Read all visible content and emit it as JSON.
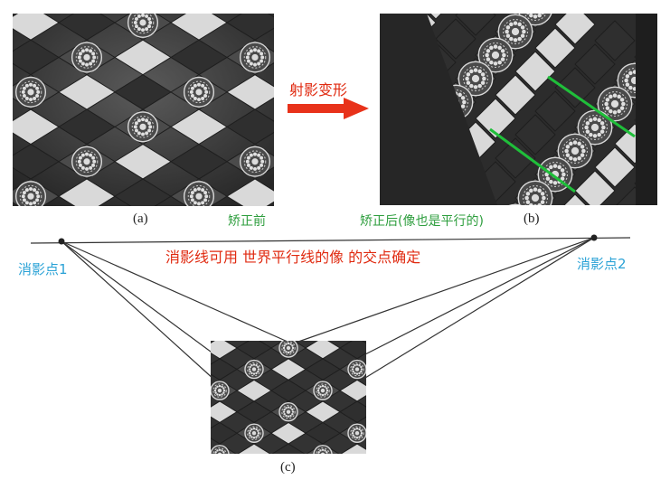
{
  "figure": {
    "panel_a": {
      "caption": "(a)",
      "note": "矫正前"
    },
    "transform_label": "射影变形",
    "panel_b": {
      "caption": "(b)",
      "note": "矫正后(像也是平行的)"
    },
    "panel_c": {
      "caption": "(c)"
    },
    "horizon_note": "消影线可用 世界平行线的像 的交点确定",
    "vanishing_point_1": "消影点1",
    "vanishing_point_2": "消影点2",
    "colors": {
      "green_note": "#2e9e3e",
      "red_note": "#e02a10",
      "cyan_note": "#2aa2d6",
      "arrow": "#e8321a",
      "parallel_lines": "#1fbf3a",
      "construction_lines": "#333333"
    }
  }
}
